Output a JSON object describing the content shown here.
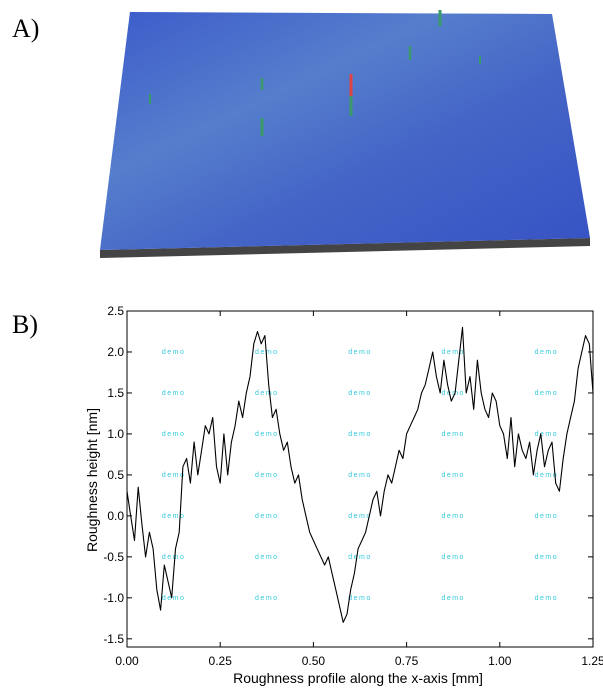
{
  "panels": {
    "a_label": "A)",
    "b_label": "B)"
  },
  "colors": {
    "surface_base": "#2f4fd0",
    "surface_light": "#5a88d8",
    "surface_edge": "#4a4a4a",
    "line": "#000000",
    "watermark": "#33c9dd"
  },
  "chart_data": {
    "type": "line",
    "title": "",
    "xlabel": "Roughness profile along the x-axis [mm]",
    "ylabel": "Roughness height [nm]",
    "xlim": [
      0,
      1.25
    ],
    "ylim": [
      -1.6,
      2.5
    ],
    "xticks": [
      0,
      0.25,
      0.5,
      0.75,
      1.0,
      1.25
    ],
    "xtick_labels": [
      "0.00",
      "0.25",
      "0.50",
      "0.75",
      "1.00",
      "1.25"
    ],
    "yticks": [
      -1.5,
      -1.0,
      -0.5,
      0.0,
      0.5,
      1.0,
      1.5,
      2.0,
      2.5
    ],
    "ytick_labels": [
      "-1.5",
      "-1.0",
      "-0.5",
      "0.0",
      "0.5",
      "1.0",
      "1.5",
      "2.0",
      "2.5"
    ],
    "grid": false,
    "watermark": "demo",
    "series": [
      {
        "x": [
          0.0,
          0.01,
          0.02,
          0.03,
          0.04,
          0.05,
          0.06,
          0.07,
          0.08,
          0.09,
          0.1,
          0.11,
          0.12,
          0.13,
          0.14,
          0.15,
          0.16,
          0.17,
          0.18,
          0.19,
          0.2,
          0.21,
          0.22,
          0.23,
          0.24,
          0.25,
          0.26,
          0.27,
          0.28,
          0.29,
          0.3,
          0.31,
          0.32,
          0.33,
          0.34,
          0.35,
          0.36,
          0.37,
          0.38,
          0.39,
          0.4,
          0.41,
          0.42,
          0.43,
          0.44,
          0.45,
          0.46,
          0.47,
          0.48,
          0.49,
          0.5,
          0.51,
          0.52,
          0.53,
          0.54,
          0.55,
          0.56,
          0.57,
          0.58,
          0.59,
          0.6,
          0.61,
          0.62,
          0.63,
          0.64,
          0.65,
          0.66,
          0.67,
          0.68,
          0.69,
          0.7,
          0.71,
          0.72,
          0.73,
          0.74,
          0.75,
          0.76,
          0.77,
          0.78,
          0.79,
          0.8,
          0.81,
          0.82,
          0.83,
          0.84,
          0.85,
          0.86,
          0.87,
          0.88,
          0.89,
          0.9,
          0.91,
          0.92,
          0.93,
          0.94,
          0.95,
          0.96,
          0.97,
          0.98,
          0.99,
          1.0,
          1.01,
          1.02,
          1.03,
          1.04,
          1.05,
          1.06,
          1.07,
          1.08,
          1.09,
          1.1,
          1.11,
          1.12,
          1.13,
          1.14,
          1.15,
          1.16,
          1.17,
          1.18,
          1.19,
          1.2,
          1.21,
          1.22,
          1.23,
          1.24,
          1.25
        ],
        "y": [
          0.3,
          0.0,
          -0.3,
          0.35,
          -0.1,
          -0.5,
          -0.2,
          -0.4,
          -0.9,
          -1.15,
          -0.6,
          -0.8,
          -1.0,
          -0.4,
          -0.2,
          0.6,
          0.7,
          0.4,
          0.9,
          0.5,
          0.8,
          1.1,
          1.0,
          1.2,
          0.6,
          0.4,
          1.0,
          0.5,
          0.9,
          1.1,
          1.4,
          1.2,
          1.5,
          1.7,
          2.1,
          2.25,
          2.1,
          2.2,
          1.6,
          1.2,
          1.3,
          1.0,
          0.8,
          0.9,
          0.6,
          0.4,
          0.5,
          0.2,
          0.0,
          -0.2,
          -0.3,
          -0.4,
          -0.5,
          -0.6,
          -0.5,
          -0.7,
          -0.9,
          -1.1,
          -1.3,
          -1.2,
          -0.9,
          -0.7,
          -0.4,
          -0.3,
          -0.2,
          0.0,
          0.2,
          0.3,
          0.0,
          0.3,
          0.5,
          0.4,
          0.6,
          0.8,
          0.7,
          1.0,
          1.1,
          1.2,
          1.3,
          1.5,
          1.6,
          1.8,
          2.0,
          1.7,
          1.5,
          1.9,
          1.6,
          1.4,
          1.5,
          1.9,
          2.3,
          1.5,
          1.7,
          1.3,
          1.9,
          1.5,
          1.3,
          1.2,
          1.5,
          1.4,
          1.1,
          1.0,
          0.7,
          1.2,
          0.6,
          1.0,
          0.8,
          0.7,
          0.9,
          0.5,
          0.8,
          1.0,
          0.6,
          0.8,
          0.9,
          0.4,
          0.3,
          0.7,
          1.0,
          1.2,
          1.4,
          1.8,
          2.0,
          2.2,
          2.1,
          1.5
        ]
      }
    ]
  }
}
